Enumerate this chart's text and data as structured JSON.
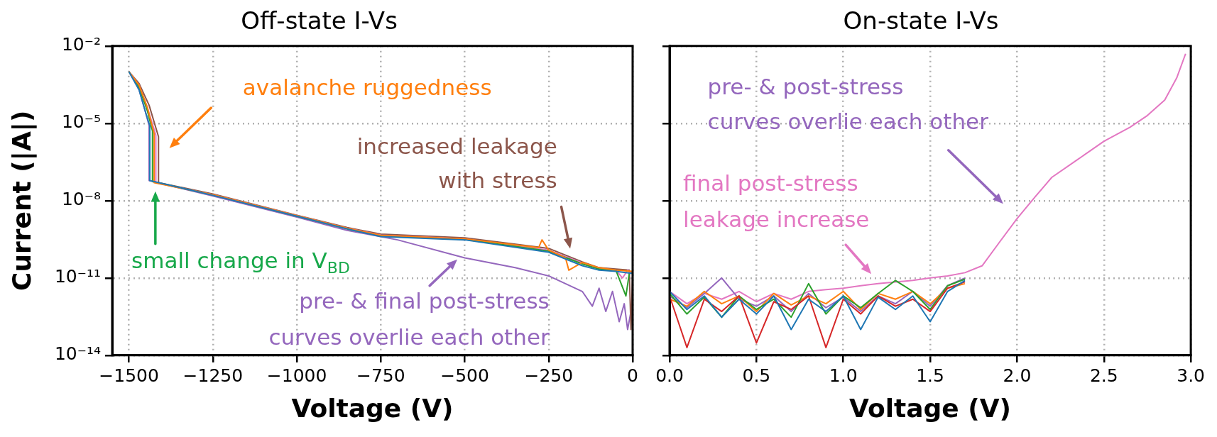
{
  "chart_data": [
    {
      "type": "line",
      "title": "Off-state I-Vs",
      "xlabel": "Voltage (V)",
      "ylabel": "Current (|A|)",
      "log": "y",
      "grid": true,
      "xlim": [
        -1550,
        0
      ],
      "xticks": [
        {
          "value": -1500,
          "label": "−1500"
        },
        {
          "value": -1250,
          "label": "−1250"
        },
        {
          "value": -1000,
          "label": "−1000"
        },
        {
          "value": -750,
          "label": "−750"
        },
        {
          "value": -500,
          "label": "−500"
        },
        {
          "value": -250,
          "label": "−250"
        },
        0
      ],
      "ylim": [
        1e-14,
        0.01
      ],
      "yticks": [
        {
          "value": 1e-14,
          "label": "10⁻¹⁴"
        },
        {
          "value": 1e-11,
          "label": "10⁻¹¹"
        },
        {
          "value": 1e-08,
          "label": "10⁻⁸"
        },
        {
          "value": 1e-05,
          "label": "10⁻⁵"
        },
        {
          "value": 0.01,
          "label": "10⁻²"
        }
      ],
      "series": [
        {
          "color": "#1f77b4",
          "x": [
            -1500,
            -1470,
            -1450,
            -1438,
            -1438,
            -1250,
            -1000,
            -850,
            -750,
            -500,
            -250,
            -150,
            -100,
            -50,
            0
          ],
          "values": [
            0.001,
            0.0002,
            2.5e-05,
            8e-06,
            6e-08,
            1.6e-08,
            2.5e-09,
            8e-10,
            4e-10,
            3e-10,
            1e-10,
            3e-11,
            2e-11,
            1.8e-11,
            1.5e-11
          ]
        },
        {
          "color": "#ff7f0e",
          "x": [
            -1500,
            -1470,
            -1445,
            -1425,
            -1425,
            -1250,
            -1000,
            -850,
            -750,
            -500,
            -280,
            -270,
            -250,
            -200,
            -190,
            -150,
            -100,
            -50,
            0
          ],
          "values": [
            0.001,
            0.0003,
            4e-05,
            4e-06,
            5e-08,
            1.7e-08,
            2.6e-09,
            8.5e-10,
            4.5e-10,
            3.3e-10,
            1.5e-10,
            3e-10,
            1.2e-10,
            6e-11,
            2e-11,
            4e-11,
            2.5e-11,
            2e-11,
            1.8e-11
          ]
        },
        {
          "color": "#2ca02c",
          "x": [
            -1500,
            -1470,
            -1445,
            -1430,
            -1430,
            -1250,
            -1000,
            -850,
            -750,
            -500,
            -250,
            -150,
            -100,
            -50,
            -20,
            -10,
            0
          ],
          "values": [
            0.001,
            0.00025,
            3e-05,
            5e-06,
            5.5e-08,
            1.65e-08,
            2.5e-09,
            8e-10,
            4.2e-10,
            3.1e-10,
            1.1e-10,
            3.5e-11,
            2.2e-11,
            2e-11,
            2e-12,
            1.5e-11,
            1.6e-11
          ]
        },
        {
          "color": "#e377c2",
          "x": [
            -1500,
            -1470,
            -1445,
            -1420,
            -1420,
            -1250,
            -1000,
            -850,
            -750,
            -500,
            -250,
            -150,
            -100,
            -50,
            -30,
            -15,
            0
          ],
          "values": [
            0.001,
            0.0003,
            4e-05,
            3.5e-06,
            5e-08,
            1.7e-08,
            2.6e-09,
            8.5e-10,
            4.6e-10,
            3.3e-10,
            1.2e-10,
            3.8e-11,
            2.3e-11,
            2e-11,
            1e-11,
            2e-11,
            1.5e-11
          ]
        },
        {
          "color": "#8c564b",
          "x": [
            -1500,
            -1470,
            -1440,
            -1412,
            -1412,
            -1250,
            -1000,
            -850,
            -750,
            -500,
            -250,
            -150,
            -100,
            -50,
            -10,
            -5,
            0
          ],
          "values": [
            0.001,
            0.00035,
            5e-05,
            3e-06,
            5e-08,
            1.8e-08,
            2.7e-09,
            9e-10,
            5e-10,
            3.6e-10,
            1.4e-10,
            4.2e-11,
            2.5e-11,
            2.2e-11,
            2e-11,
            1e-13,
            1.8e-11
          ]
        },
        {
          "color": "#9467bd",
          "x": [
            -1500,
            -1470,
            -1450,
            -1440,
            -1440,
            -1250,
            -1000,
            -850,
            -700,
            -500,
            -350,
            -250,
            -200,
            -150,
            -120,
            -100,
            -80,
            -60,
            -40,
            -25,
            -15,
            -5,
            0
          ],
          "values": [
            0.001,
            0.0002,
            2.5e-05,
            8e-06,
            6e-08,
            1.5e-08,
            2.3e-09,
            7e-10,
            3e-10,
            6e-11,
            2.5e-11,
            1.2e-11,
            6e-12,
            3e-12,
            8e-13,
            4e-12,
            5e-13,
            3e-12,
            2e-13,
            1e-12,
            1e-13,
            5e-13,
            2e-13
          ]
        }
      ],
      "annotations": [
        "avalanche ruggedness",
        "increased leakage\nwith stress",
        "small change in V$_{BD}$",
        "pre- & final post-stress\ncurves overlie each other"
      ]
    },
    {
      "type": "line",
      "title": "On-state I-Vs",
      "xlabel": "Voltage (V)",
      "log": "y",
      "grid": true,
      "tick_labels": "x",
      "xlim": [
        0,
        3
      ],
      "xticks": [
        {
          "value": 0,
          "label": "0.0"
        },
        0.5,
        {
          "value": 1,
          "label": "1.0"
        },
        1.5,
        {
          "value": 2,
          "label": "2.0"
        },
        2.5,
        {
          "value": 3,
          "label": "3.0"
        }
      ],
      "ylim": [
        1e-14,
        0.01
      ],
      "yticks": [
        {
          "value": 1e-14,
          "label": null
        },
        {
          "value": 1e-11,
          "label": null
        },
        {
          "value": 1e-08,
          "label": null
        },
        {
          "value": 1e-05,
          "label": null
        },
        {
          "value": 0.01,
          "label": null
        }
      ],
      "x": [
        0,
        0.1,
        0.2,
        0.3,
        0.4,
        0.5,
        0.6,
        0.7,
        0.8,
        0.9,
        1,
        1.1,
        1.2,
        1.3,
        1.4,
        1.5,
        1.6,
        1.7,
        1.8,
        1.9,
        2,
        2.1,
        2.2,
        2.35,
        2.5,
        2.65,
        2.75,
        2.85,
        2.92,
        2.97
      ],
      "series": [
        {
          "color": "#1f77b4",
          "values": [
            3e-12,
            6e-13,
            2e-12,
            3e-13,
            1.5e-12,
            4e-13,
            2e-12,
            1e-13,
            1.5e-12,
            5e-13,
            2e-12,
            1e-13,
            1.8e-12,
            6e-13,
            2e-12,
            2e-13,
            3e-12,
            8e-12,
            null,
            null,
            null,
            null,
            null,
            null,
            null,
            null,
            null,
            null,
            null,
            null
          ]
        },
        {
          "color": "#d62728",
          "values": [
            2e-12,
            2e-14,
            1.5e-12,
            5e-13,
            2e-12,
            3e-14,
            1.2e-12,
            6e-13,
            2e-12,
            2e-14,
            1.5e-12,
            4e-13,
            2e-12,
            8e-13,
            1.5e-12,
            5e-13,
            4e-12,
            7e-12,
            null,
            null,
            null,
            null,
            null,
            null,
            null,
            null,
            null,
            null,
            null,
            null
          ]
        },
        {
          "color": "#2ca02c",
          "values": [
            2.5e-12,
            4e-13,
            1.8e-12,
            3e-13,
            2e-12,
            6e-13,
            1.5e-12,
            3e-13,
            6e-12,
            4e-13,
            2e-12,
            7e-13,
            2.5e-12,
            8e-12,
            3e-12,
            6e-13,
            5e-12,
            9e-12,
            null,
            null,
            null,
            null,
            null,
            null,
            null,
            null,
            null,
            null,
            null,
            null
          ]
        },
        {
          "color": "#ff7f0e",
          "values": [
            1.5e-12,
            8e-13,
            3e-12,
            1e-12,
            2e-12,
            5e-13,
            2.5e-12,
            9e-13,
            2e-12,
            1e-12,
            3e-12,
            6e-13,
            2.5e-12,
            1.5e-12,
            3e-12,
            1e-12,
            4e-12,
            6e-12,
            null,
            null,
            null,
            null,
            null,
            null,
            null,
            null,
            null,
            null,
            null,
            null
          ]
        },
        {
          "color": "#9467bd",
          "values": [
            2e-12,
            7e-13,
            2.5e-12,
            1e-11,
            1.5e-12,
            8e-13,
            2e-12,
            5e-13,
            2.5e-12,
            7e-13,
            1.8e-12,
            5e-13,
            2e-12,
            1e-12,
            3e-12,
            8e-13,
            5e-12,
            1e-11,
            null,
            null,
            null,
            null,
            null,
            null,
            null,
            null,
            null,
            null,
            null,
            null
          ]
        },
        {
          "color": "#e377c2",
          "values": [
            3e-12,
            1e-12,
            2.5e-12,
            1.5e-12,
            3e-12,
            1.2e-12,
            2.5e-12,
            1.5e-12,
            3e-12,
            3.5e-12,
            4e-12,
            5e-12,
            6e-12,
            7e-12,
            8e-12,
            1e-11,
            1.2e-11,
            1.6e-11,
            3e-11,
            2.5e-10,
            2e-09,
            1.3e-08,
            8e-08,
            4e-07,
            2e-06,
            7e-06,
            2e-05,
            8e-05,
            0.0006,
            0.005
          ]
        }
      ],
      "annotations": [
        "pre- & post-stress\ncurves overlie each other",
        "final post-stress\nleakage increase"
      ]
    }
  ]
}
